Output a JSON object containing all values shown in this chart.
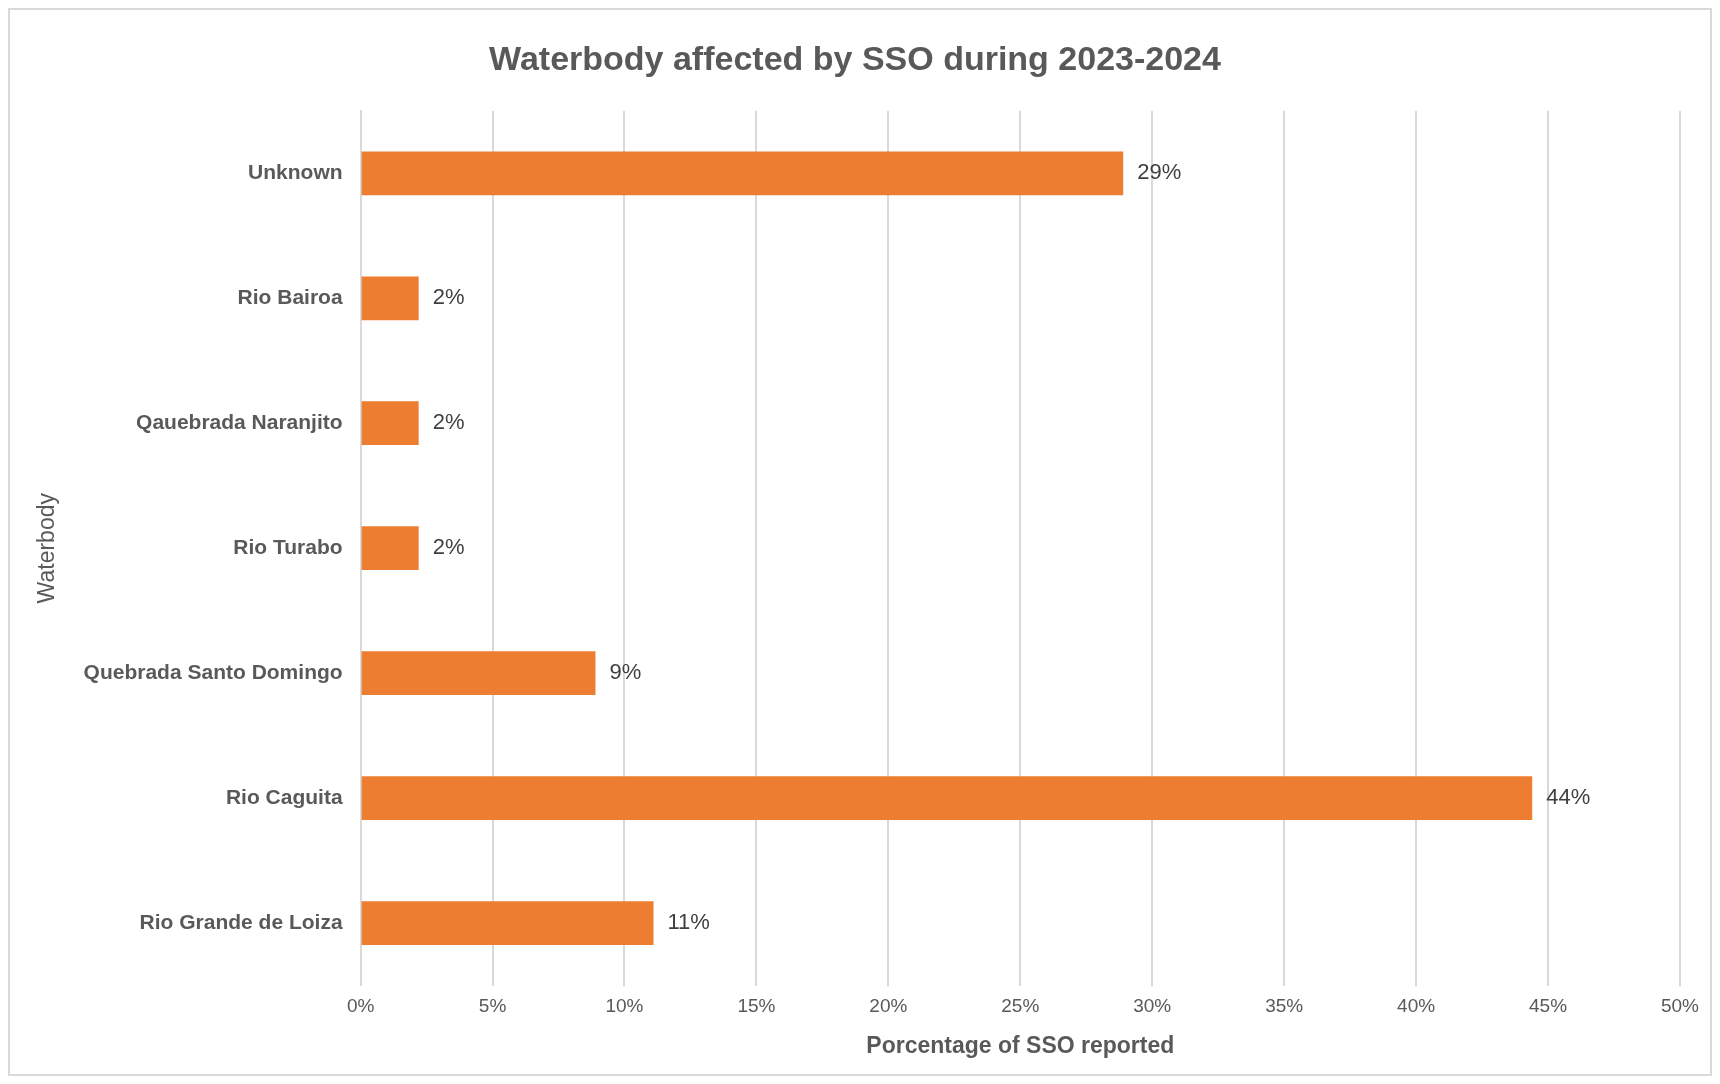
{
  "chart_data": {
    "type": "bar",
    "orientation": "horizontal",
    "title": "Waterbody affected by SSO during 2023-2024",
    "xlabel": "Porcentage of SSO reported",
    "ylabel": "Waterbody",
    "categories": [
      "Unknown",
      "Rio Bairoa",
      "Qauebrada Naranjito",
      "Rio Turabo",
      "Quebrada Santo Domingo",
      "Rio Caguita",
      "Rio Grande de Loiza"
    ],
    "values": [
      28.9,
      2.2,
      2.2,
      2.2,
      8.9,
      44.4,
      11.1
    ],
    "value_labels": [
      "29%",
      "2%",
      "2%",
      "2%",
      "9%",
      "44%",
      "11%"
    ],
    "color": "#ed7d31",
    "xlim": [
      0,
      50
    ],
    "xticks": [
      {
        "value": 0,
        "label": "0%"
      },
      {
        "value": 5,
        "label": "5%"
      },
      {
        "value": 10,
        "label": "10%"
      },
      {
        "value": 15,
        "label": "15%"
      },
      {
        "value": 20,
        "label": "20%"
      },
      {
        "value": 25,
        "label": "25%"
      },
      {
        "value": 30,
        "label": "30%"
      },
      {
        "value": 35,
        "label": "35%"
      },
      {
        "value": 40,
        "label": "40%"
      },
      {
        "value": 45,
        "label": "45%"
      },
      {
        "value": 50,
        "label": "50%"
      }
    ],
    "grid": "x",
    "legend": false
  }
}
